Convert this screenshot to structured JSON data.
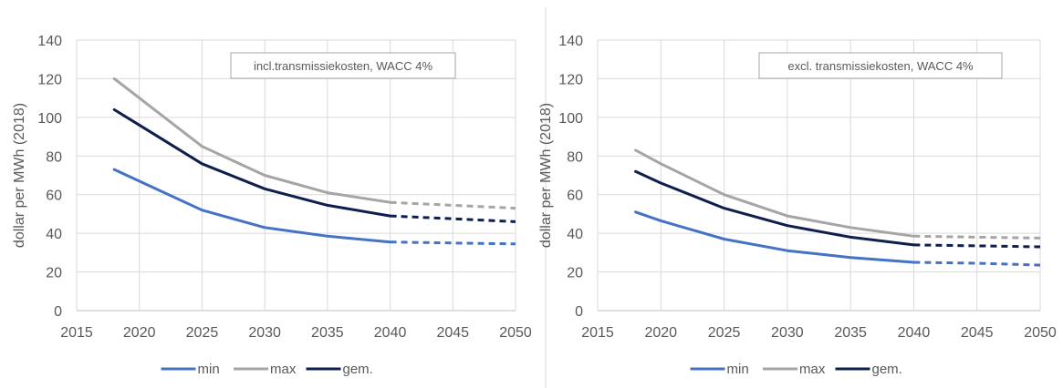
{
  "chart_data": [
    {
      "type": "line",
      "annotation": "incl.transmissiekosten, WACC 4%",
      "ylabel": "dollar per MWh (2018)",
      "xlim": [
        2015,
        2050
      ],
      "ylim": [
        0,
        140
      ],
      "x_ticks": [
        "2015",
        "2020",
        "2025",
        "2030",
        "2035",
        "2040",
        "2045",
        "2050"
      ],
      "y_ticks": [
        "0",
        "20",
        "40",
        "60",
        "80",
        "100",
        "120",
        "140"
      ],
      "grid": true,
      "legend": "bottom",
      "series": [
        {
          "name": "min",
          "color": "#4472c4",
          "x": [
            2018,
            2020,
            2025,
            2030,
            2035,
            2040
          ],
          "y": [
            73,
            67,
            52,
            43,
            38.5,
            35.5
          ],
          "projection_x": [
            2040,
            2045,
            2050
          ],
          "projection_y": [
            35.5,
            35,
            34.5
          ]
        },
        {
          "name": "max",
          "color": "#a5a5a5",
          "x": [
            2018,
            2020,
            2025,
            2030,
            2035,
            2040
          ],
          "y": [
            120,
            110,
            85,
            70,
            61,
            56
          ],
          "projection_x": [
            2040,
            2045,
            2050
          ],
          "projection_y": [
            56,
            54.5,
            53
          ]
        },
        {
          "name": "gem.",
          "color": "#0e1f4d",
          "x": [
            2018,
            2020,
            2025,
            2030,
            2035,
            2040
          ],
          "y": [
            104,
            96,
            76,
            63,
            54.5,
            49
          ],
          "projection_x": [
            2040,
            2045,
            2050
          ],
          "projection_y": [
            49,
            47.5,
            46
          ]
        }
      ]
    },
    {
      "type": "line",
      "annotation": "excl. transmissiekosten, WACC 4%",
      "ylabel": "dollar per MWh (2018)",
      "xlim": [
        2015,
        2050
      ],
      "ylim": [
        0,
        140
      ],
      "x_ticks": [
        "2015",
        "2020",
        "2025",
        "2030",
        "2035",
        "2040",
        "2045",
        "2050"
      ],
      "y_ticks": [
        "0",
        "20",
        "40",
        "60",
        "80",
        "100",
        "120",
        "140"
      ],
      "grid": true,
      "legend": "bottom",
      "series": [
        {
          "name": "min",
          "color": "#4472c4",
          "x": [
            2018,
            2020,
            2025,
            2030,
            2035,
            2040
          ],
          "y": [
            51,
            46.5,
            37,
            31,
            27.5,
            25
          ],
          "projection_x": [
            2040,
            2045,
            2050
          ],
          "projection_y": [
            25,
            24.5,
            23.5
          ]
        },
        {
          "name": "max",
          "color": "#a5a5a5",
          "x": [
            2018,
            2020,
            2025,
            2030,
            2035,
            2040
          ],
          "y": [
            83,
            76,
            60,
            49,
            43,
            38.5
          ],
          "projection_x": [
            2040,
            2045,
            2050
          ],
          "projection_y": [
            38.5,
            38,
            37.5
          ]
        },
        {
          "name": "gem.",
          "color": "#0e1f4d",
          "x": [
            2018,
            2020,
            2025,
            2030,
            2035,
            2040
          ],
          "y": [
            72,
            66,
            53,
            44,
            38,
            34
          ],
          "projection_x": [
            2040,
            2045,
            2050
          ],
          "projection_y": [
            34,
            33.5,
            33
          ]
        }
      ]
    }
  ]
}
